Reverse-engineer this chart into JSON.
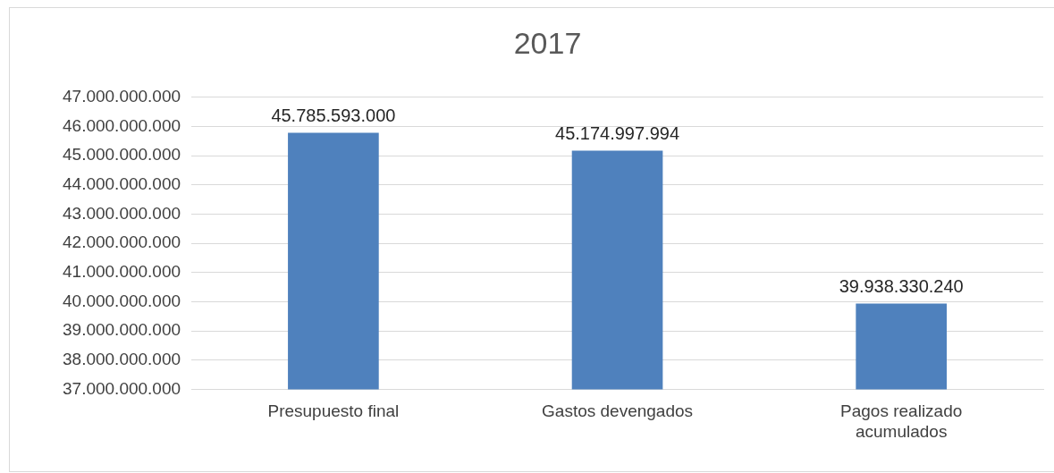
{
  "chart_data": {
    "type": "bar",
    "title": "2017",
    "categories": [
      "Presupuesto final",
      "Gastos devengados",
      "Pagos realizado acumulados"
    ],
    "values": [
      45785593000,
      45174997994,
      39938330240
    ],
    "value_labels": [
      "45.785.593.000",
      "45.174.997.994",
      "39.938.330.240"
    ],
    "color": "#4f81bd",
    "ylim": [
      37000000000,
      47000000000
    ],
    "yticks": [
      {
        "value": 37000000000,
        "label": "37.000.000.000"
      },
      {
        "value": 38000000000,
        "label": "38.000.000.000"
      },
      {
        "value": 39000000000,
        "label": "39.000.000.000"
      },
      {
        "value": 40000000000,
        "label": "40.000.000.000"
      },
      {
        "value": 41000000000,
        "label": "41.000.000.000"
      },
      {
        "value": 42000000000,
        "label": "42.000.000.000"
      },
      {
        "value": 43000000000,
        "label": "43.000.000.000"
      },
      {
        "value": 44000000000,
        "label": "44.000.000.000"
      },
      {
        "value": 45000000000,
        "label": "45.000.000.000"
      },
      {
        "value": 46000000000,
        "label": "46.000.000.000"
      },
      {
        "value": 47000000000,
        "label": "47.000.000.000"
      }
    ],
    "grid": "y",
    "legend": false
  }
}
